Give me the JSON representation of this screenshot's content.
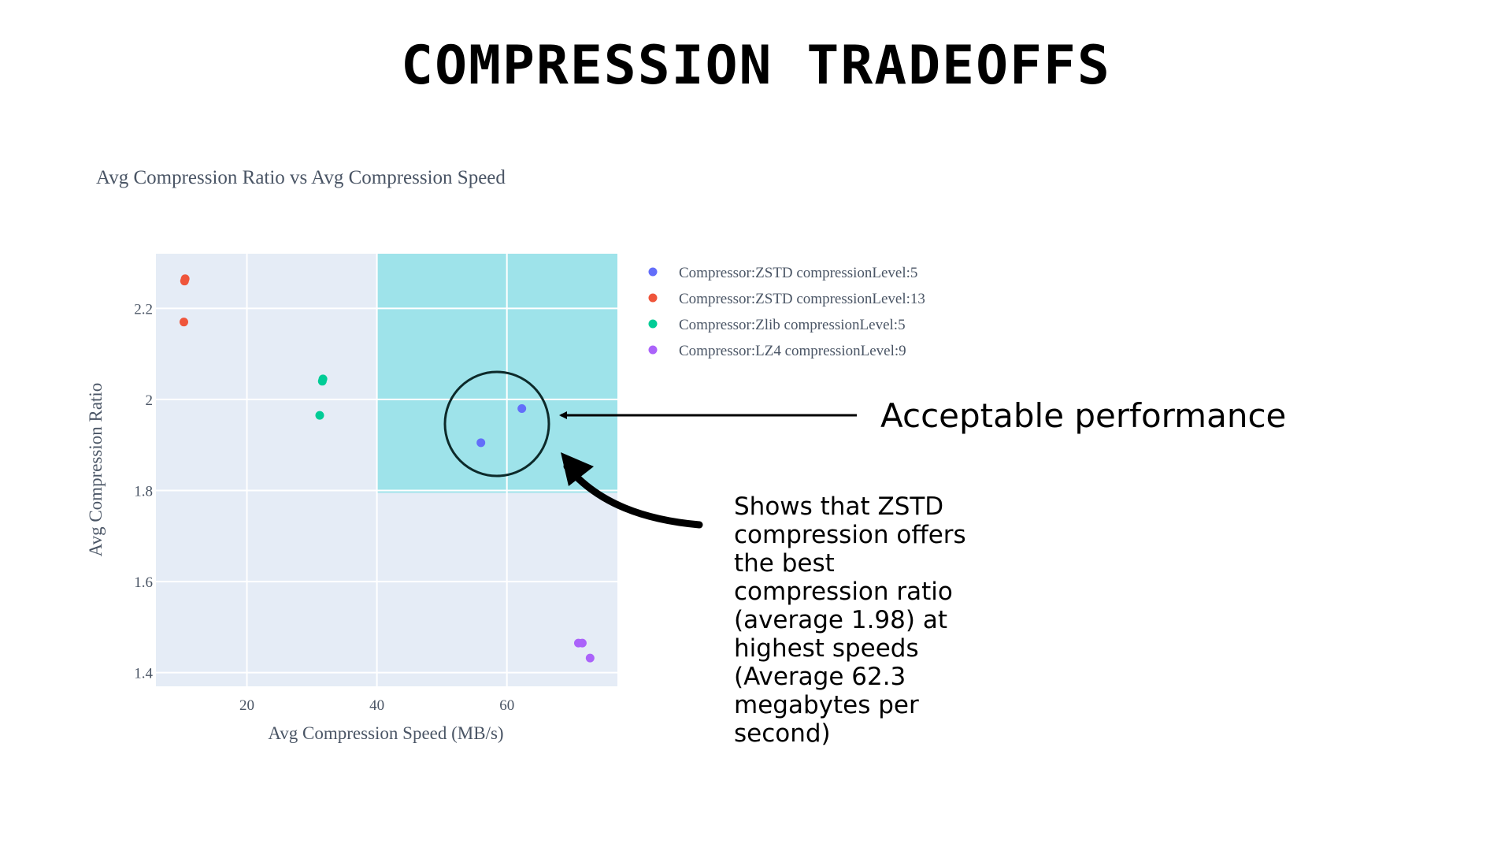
{
  "slide": {
    "title": "COMPRESSION TRADEOFFS"
  },
  "chart_data": {
    "type": "scatter",
    "title": "Avg Compression Ratio vs Avg Compression Speed",
    "xlabel": "Avg Compression Speed (MB/s)",
    "ylabel": "Avg Compression Ratio",
    "xlim": [
      6,
      77
    ],
    "ylim": [
      1.37,
      2.32
    ],
    "xticks": [
      20,
      40,
      60
    ],
    "xtick_labels": [
      "20",
      "40",
      "60"
    ],
    "yticks": [
      1.4,
      1.6,
      1.8,
      2.0,
      2.2
    ],
    "ytick_labels": [
      "1.4",
      "1.6",
      "1.8",
      "2",
      "2.2"
    ],
    "grid": true,
    "legend_position": "right",
    "plot_background": "#e5ecf6",
    "highlight_region": {
      "x": [
        40,
        77
      ],
      "y": [
        1.795,
        2.32
      ],
      "color": "#9ee3ea"
    },
    "series": [
      {
        "name": "Compressor:ZSTD compressionLevel:5",
        "color": "#636efa",
        "points": [
          {
            "x": 62.3,
            "y": 1.98
          },
          {
            "x": 56.0,
            "y": 1.905
          }
        ]
      },
      {
        "name": "Compressor:ZSTD compressionLevel:13",
        "color": "#ef553b",
        "points": [
          {
            "x": 10.5,
            "y": 2.265
          },
          {
            "x": 10.4,
            "y": 2.26
          },
          {
            "x": 10.3,
            "y": 2.17
          }
        ]
      },
      {
        "name": "Compressor:Zlib compressionLevel:5",
        "color": "#00cc96",
        "points": [
          {
            "x": 31.7,
            "y": 2.045
          },
          {
            "x": 31.6,
            "y": 2.04
          },
          {
            "x": 31.2,
            "y": 1.965
          }
        ]
      },
      {
        "name": "Compressor:LZ4 compressionLevel:9",
        "color": "#ab63fa",
        "points": [
          {
            "x": 71.0,
            "y": 1.465
          },
          {
            "x": 71.6,
            "y": 1.465
          },
          {
            "x": 72.8,
            "y": 1.432
          }
        ]
      }
    ]
  },
  "annotations": {
    "acceptable": "Acceptable performance",
    "note": "Shows that ZSTD compression offers the best compression ratio  (average 1.98) at highest speeds (Average 62.3 megabytes per second)"
  }
}
